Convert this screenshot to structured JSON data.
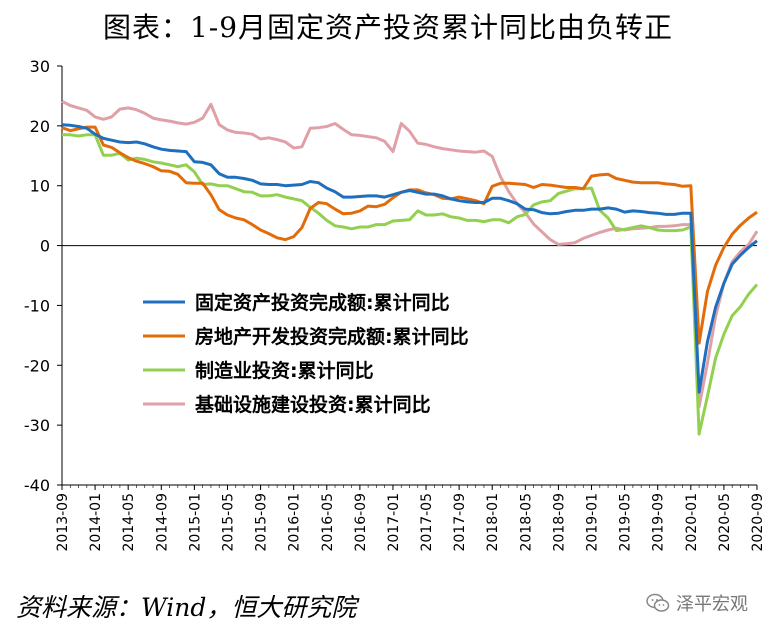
{
  "title": "图表：1-9月固定资产投资累计同比由负转正",
  "source": "资料来源：Wind，恒大研究院",
  "watermark": "泽平宏观",
  "colors": {
    "fixed": "#1f6fbf",
    "realestate": "#e36c0a",
    "manufacturing": "#92d050",
    "infrastructure": "#e0a0a8"
  },
  "chart_data": {
    "type": "line",
    "ylim": [
      -40,
      30
    ],
    "yticks": [
      30,
      20,
      10,
      0,
      -10,
      -20,
      -30,
      -40
    ],
    "x_start": "2013-09",
    "x": [
      "2013-09",
      "2013-10",
      "2013-11",
      "2013-12",
      "2014-01",
      "2014-02",
      "2014-03",
      "2014-04",
      "2014-05",
      "2014-06",
      "2014-07",
      "2014-08",
      "2014-09",
      "2014-10",
      "2014-11",
      "2014-12",
      "2015-01",
      "2015-02",
      "2015-03",
      "2015-04",
      "2015-05",
      "2015-06",
      "2015-07",
      "2015-08",
      "2015-09",
      "2015-10",
      "2015-11",
      "2015-12",
      "2016-01",
      "2016-02",
      "2016-03",
      "2016-04",
      "2016-05",
      "2016-06",
      "2016-07",
      "2016-08",
      "2016-09",
      "2016-10",
      "2016-11",
      "2016-12",
      "2017-01",
      "2017-02",
      "2017-03",
      "2017-04",
      "2017-05",
      "2017-06",
      "2017-07",
      "2017-08",
      "2017-09",
      "2017-10",
      "2017-11",
      "2017-12",
      "2018-01",
      "2018-02",
      "2018-03",
      "2018-04",
      "2018-05",
      "2018-06",
      "2018-07",
      "2018-08",
      "2018-09",
      "2018-10",
      "2018-11",
      "2018-12",
      "2019-01",
      "2019-02",
      "2019-03",
      "2019-04",
      "2019-05",
      "2019-06",
      "2019-07",
      "2019-08",
      "2019-09",
      "2019-10",
      "2019-11",
      "2019-12",
      "2020-01",
      "2020-02",
      "2020-03",
      "2020-04",
      "2020-05",
      "2020-06",
      "2020-07",
      "2020-08",
      "2020-09"
    ],
    "xtick_labels": [
      "2013-09",
      "2014-01",
      "2014-05",
      "2014-09",
      "2015-01",
      "2015-05",
      "2015-09",
      "2016-01",
      "2016-05",
      "2016-09",
      "2017-01",
      "2017-05",
      "2017-09",
      "2018-01",
      "2018-05",
      "2018-09",
      "2019-01",
      "2019-05",
      "2019-09",
      "2020-01",
      "2020-05",
      "2020-09"
    ],
    "series": [
      {
        "name": "固定资产投资完成额:累计同比",
        "color_key": "fixed",
        "values": [
          20.2,
          20.1,
          19.9,
          19.6,
          18.6,
          17.9,
          17.6,
          17.3,
          17.2,
          17.3,
          17.0,
          16.5,
          16.1,
          15.9,
          15.8,
          15.7,
          14.0,
          13.9,
          13.5,
          12.0,
          11.4,
          11.4,
          11.2,
          10.9,
          10.3,
          10.2,
          10.2,
          10.0,
          10.1,
          10.2,
          10.7,
          10.5,
          9.6,
          9.0,
          8.1,
          8.1,
          8.2,
          8.3,
          8.3,
          8.1,
          8.5,
          8.9,
          9.2,
          8.9,
          8.6,
          8.6,
          8.3,
          7.8,
          7.5,
          7.3,
          7.2,
          7.2,
          7.9,
          7.9,
          7.5,
          7.0,
          6.1,
          6.0,
          5.5,
          5.3,
          5.4,
          5.7,
          5.9,
          5.9,
          6.1,
          6.1,
          6.3,
          6.1,
          5.6,
          5.8,
          5.7,
          5.5,
          5.4,
          5.2,
          5.2,
          5.4,
          5.4,
          -24.5,
          -16.1,
          -10.3,
          -6.3,
          -3.1,
          -1.6,
          -0.3,
          0.8
        ]
      },
      {
        "name": "房地产开发投资完成额:累计同比",
        "color_key": "realestate",
        "values": [
          19.7,
          19.2,
          19.5,
          19.8,
          19.8,
          16.8,
          16.4,
          15.5,
          14.7,
          14.1,
          13.7,
          13.2,
          12.5,
          12.4,
          11.9,
          10.5,
          10.4,
          10.4,
          8.5,
          6.0,
          5.1,
          4.6,
          4.3,
          3.5,
          2.6,
          2.0,
          1.3,
          1.0,
          1.5,
          3.0,
          6.2,
          7.2,
          7.0,
          6.1,
          5.3,
          5.4,
          5.8,
          6.6,
          6.5,
          6.9,
          8.0,
          8.9,
          9.3,
          9.3,
          8.8,
          8.5,
          7.9,
          7.8,
          8.1,
          7.8,
          7.5,
          7.0,
          9.9,
          10.4,
          10.4,
          10.3,
          10.2,
          9.7,
          10.2,
          10.1,
          9.9,
          9.7,
          9.7,
          9.5,
          11.6,
          11.8,
          11.9,
          11.2,
          10.9,
          10.6,
          10.5,
          10.5,
          10.5,
          10.3,
          10.2,
          9.9,
          10.0,
          -16.3,
          -7.7,
          -3.3,
          -0.3,
          1.9,
          3.4,
          4.6,
          5.6
        ]
      },
      {
        "name": "制造业投资:累计同比",
        "color_key": "manufacturing",
        "values": [
          18.5,
          18.5,
          18.3,
          18.5,
          18.5,
          15.1,
          15.1,
          15.4,
          14.3,
          14.6,
          14.4,
          14.0,
          13.8,
          13.5,
          13.2,
          13.5,
          12.3,
          10.2,
          10.3,
          10.0,
          10.0,
          9.5,
          9.0,
          8.9,
          8.3,
          8.3,
          8.5,
          8.1,
          7.8,
          7.5,
          6.4,
          5.4,
          4.2,
          3.3,
          3.1,
          2.8,
          3.1,
          3.1,
          3.5,
          3.5,
          4.1,
          4.2,
          4.3,
          5.8,
          5.1,
          5.1,
          5.3,
          4.8,
          4.6,
          4.2,
          4.2,
          4.0,
          4.3,
          4.3,
          3.8,
          4.8,
          5.2,
          6.8,
          7.3,
          7.5,
          8.7,
          9.1,
          9.5,
          9.5,
          9.6,
          5.9,
          4.6,
          2.5,
          2.7,
          3.0,
          3.3,
          3.0,
          2.6,
          2.5,
          2.5,
          2.6,
          3.1,
          -31.5,
          -25.2,
          -18.8,
          -14.8,
          -11.7,
          -10.2,
          -8.1,
          -6.5
        ]
      },
      {
        "name": "基础设施建设投资:累计同比",
        "color_key": "infrastructure",
        "values": [
          24.1,
          23.4,
          23.0,
          22.6,
          21.5,
          21.1,
          21.5,
          22.8,
          23.0,
          22.7,
          22.1,
          21.3,
          21.0,
          20.8,
          20.5,
          20.3,
          20.6,
          21.3,
          23.6,
          20.2,
          19.3,
          18.9,
          18.8,
          18.6,
          17.8,
          18.0,
          17.7,
          17.3,
          16.3,
          16.5,
          19.6,
          19.7,
          19.9,
          20.4,
          19.4,
          18.5,
          18.4,
          18.2,
          18.0,
          17.4,
          15.7,
          20.4,
          19.1,
          17.1,
          16.9,
          16.5,
          16.2,
          16.0,
          15.8,
          15.7,
          15.6,
          15.8,
          14.9,
          11.5,
          9.0,
          7.0,
          5.5,
          3.6,
          2.3,
          1.0,
          0.2,
          0.3,
          0.5,
          1.2,
          1.7,
          2.2,
          2.6,
          2.9,
          2.6,
          2.8,
          2.9,
          3.0,
          3.2,
          3.2,
          3.3,
          3.5,
          3.5,
          -26.9,
          -19.7,
          -11.8,
          -6.3,
          -2.7,
          -1.0,
          0.2,
          2.4
        ]
      }
    ]
  }
}
